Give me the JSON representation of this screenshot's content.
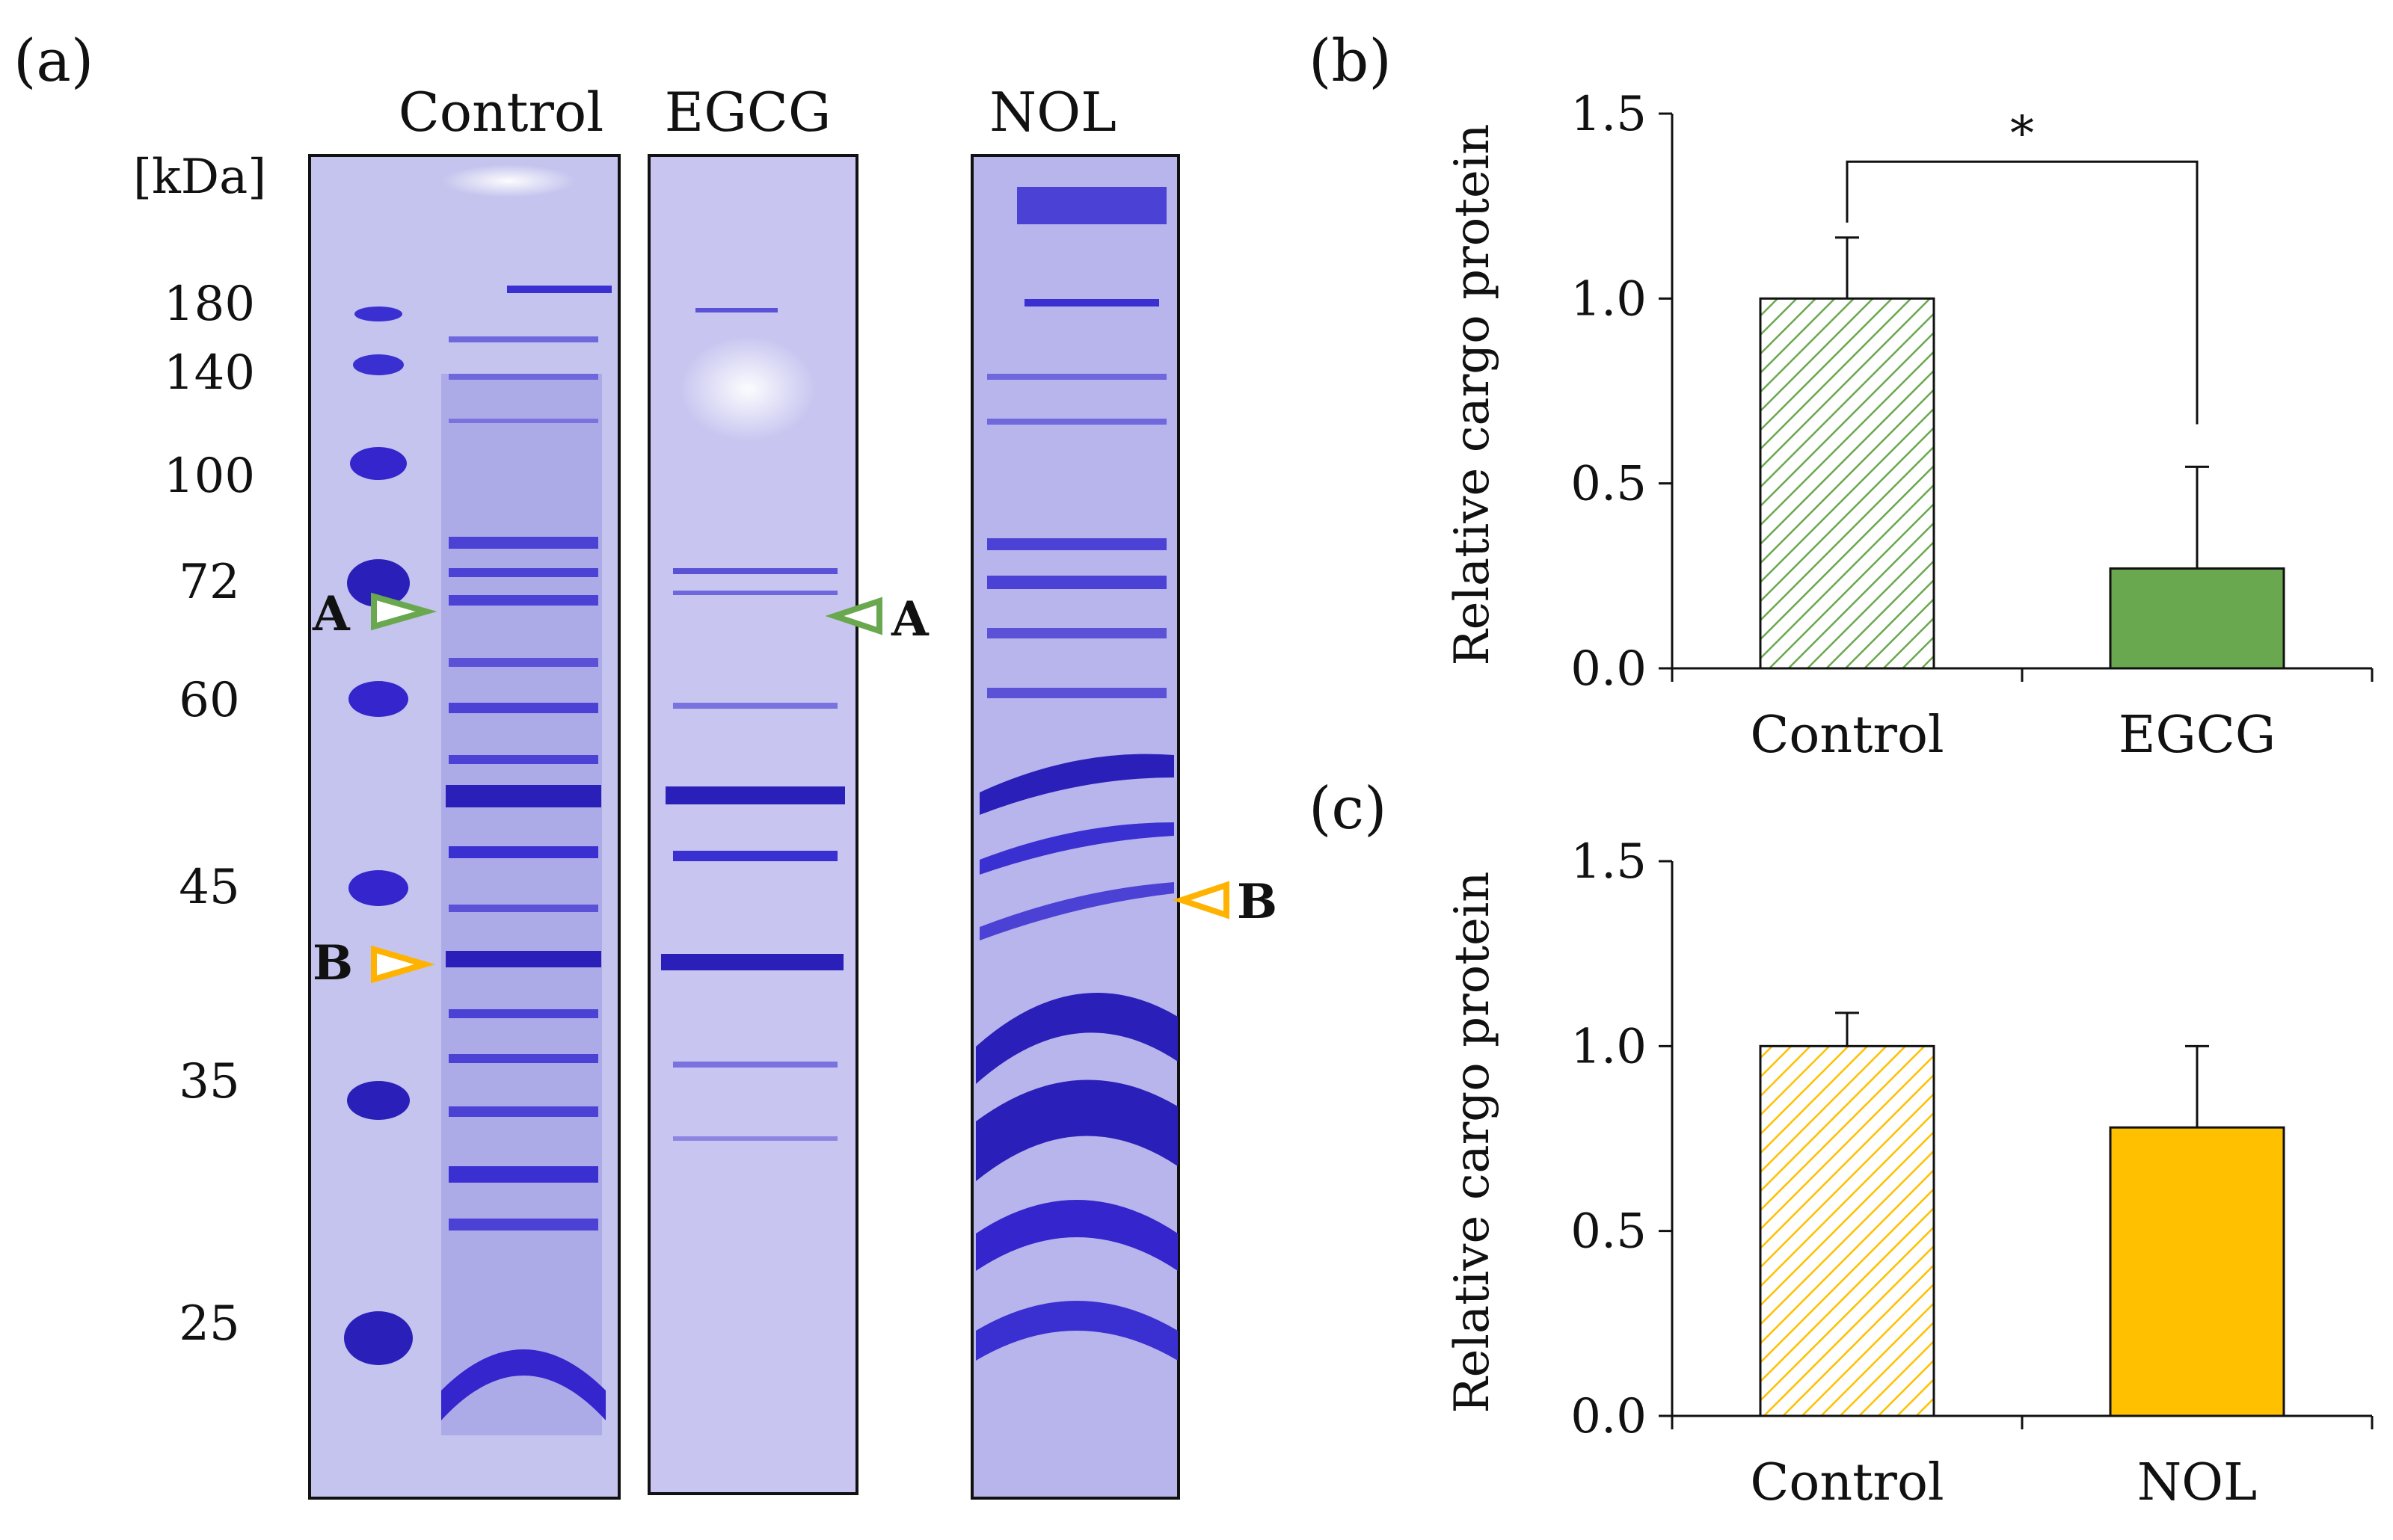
{
  "panel_a": {
    "label": "(a)",
    "unit_label": "[kDa]",
    "lane_labels": [
      "Control",
      "EGCG",
      "NOL"
    ],
    "mw_ladder": [
      "180",
      "140",
      "100",
      "72",
      "60",
      "45",
      "35",
      "25"
    ],
    "markers": [
      {
        "letter": "A",
        "color": "#6aa84f"
      },
      {
        "letter": "A",
        "color": "#6aa84f"
      },
      {
        "letter": "B",
        "color": "#ffb300"
      },
      {
        "letter": "B",
        "color": "#ffb300"
      }
    ],
    "gel_colors": {
      "background": "#c9c9ef",
      "band": "#3a2fd0",
      "strong_band": "#2a1fb8"
    }
  },
  "chart_data": [
    {
      "type": "bar",
      "panel_label": "(b)",
      "title": "",
      "xlabel": "",
      "ylabel": "Relative cargo protein",
      "categories": [
        "Control",
        "EGCG"
      ],
      "values": [
        1.0,
        0.27
      ],
      "error_upper": [
        0.165,
        0.275
      ],
      "ylim": [
        0.0,
        1.5
      ],
      "yticks": [
        "0.0",
        "0.5",
        "1.0",
        "1.5"
      ],
      "significance": "*",
      "bar_styles": [
        "hatched",
        "solid"
      ],
      "color": "#6aa84f"
    },
    {
      "type": "bar",
      "panel_label": "(c)",
      "title": "",
      "xlabel": "",
      "ylabel": "Relative cargo protein",
      "categories": [
        "Control",
        "NOL"
      ],
      "values": [
        1.0,
        0.78
      ],
      "error_upper": [
        0.09,
        0.22
      ],
      "ylim": [
        0.0,
        1.5
      ],
      "yticks": [
        "0.0",
        "0.5",
        "1.0",
        "1.5"
      ],
      "significance": "",
      "bar_styles": [
        "hatched",
        "solid"
      ],
      "color": "#ffc000"
    }
  ]
}
